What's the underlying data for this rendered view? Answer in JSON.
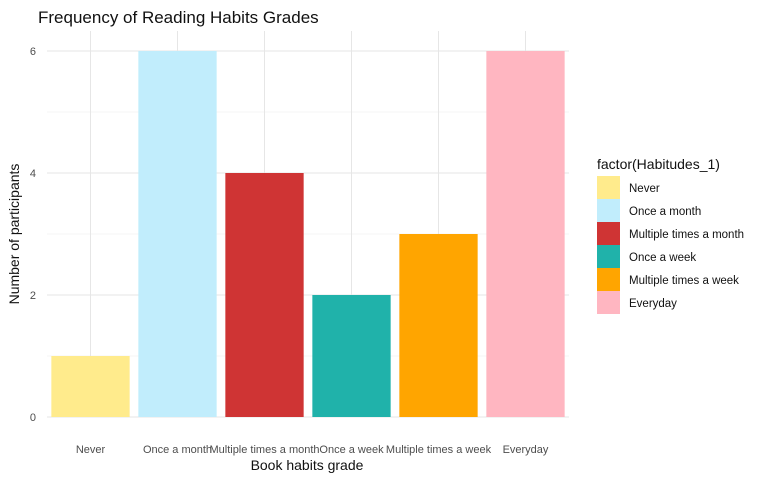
{
  "chart_data": {
    "type": "bar",
    "title": "Frequency of Reading Habits Grades",
    "xlabel": "Book habits grade",
    "ylabel": "Number of participants",
    "categories": [
      "Never",
      "Once a month",
      "Multiple times a month",
      "Once a week",
      "Multiple times a week",
      "Everyday"
    ],
    "values": [
      1,
      6,
      4,
      2,
      3,
      6
    ],
    "colors": [
      "#FFEB8C",
      "#C1EDFC",
      "#CF3434",
      "#20B2AA",
      "#FFA500",
      "#FFB6C1"
    ],
    "ylim": [
      0,
      6
    ],
    "yticks": [
      0,
      2,
      4,
      6
    ],
    "grid": true,
    "legend": {
      "title": "factor(Habitudes_1)",
      "placement": "right",
      "entries": [
        "Never",
        "Once a month",
        "Multiple times a month",
        "Once a week",
        "Multiple times a week",
        "Everyday"
      ]
    }
  }
}
